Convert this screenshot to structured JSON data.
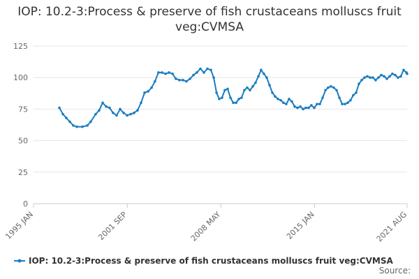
{
  "chart_data": {
    "type": "line",
    "title": "IOP: 10.2-3:Process & preserve of fish crustaceans molluscs fruit veg:CVMSA",
    "source": "Source:",
    "series": [
      {
        "name": "IOP: 10.2-3:Process & preserve of fish crustaceans molluscs fruit veg:CVMSA",
        "color": "#1a7dc0",
        "x": [
          1996.84,
          1997.09,
          1997.33,
          1997.58,
          1997.83,
          1998.08,
          1998.48,
          1998.83,
          1999.07,
          1999.42,
          1999.67,
          1999.92,
          2000.17,
          2000.41,
          2000.66,
          2000.91,
          2001.16,
          2001.41,
          2001.66,
          2001.91,
          2002.15,
          2002.4,
          2002.65,
          2002.9,
          2003.15,
          2003.4,
          2003.64,
          2003.89,
          2004.14,
          2004.39,
          2004.64,
          2004.89,
          2005.13,
          2005.38,
          2005.63,
          2005.88,
          2006.13,
          2006.38,
          2006.62,
          2006.87,
          2007.12,
          2007.37,
          2007.62,
          2007.82,
          2008.02,
          2008.21,
          2008.41,
          2008.61,
          2008.81,
          2009.01,
          2009.21,
          2009.41,
          2009.61,
          2009.8,
          2010.0,
          2010.2,
          2010.4,
          2010.6,
          2010.8,
          2011.0,
          2011.19,
          2011.39,
          2011.59,
          2011.79,
          2011.99,
          2012.19,
          2012.39,
          2012.59,
          2012.78,
          2012.98,
          2013.18,
          2013.38,
          2013.58,
          2013.78,
          2013.98,
          2014.18,
          2014.37,
          2014.57,
          2014.77,
          2014.97,
          2015.17,
          2015.37,
          2015.57,
          2015.77,
          2015.96,
          2016.16,
          2016.36,
          2016.56,
          2016.76,
          2016.96,
          2017.16,
          2017.35,
          2017.55,
          2017.75,
          2017.95,
          2018.15,
          2018.35,
          2018.55,
          2018.75,
          2018.94,
          2019.14,
          2019.34,
          2019.54,
          2019.74,
          2019.94,
          2020.14,
          2020.34,
          2020.53,
          2020.73,
          2020.93,
          2021.13,
          2021.33,
          2021.53,
          2021.58
        ],
        "values": [
          76,
          71,
          68,
          65,
          62,
          61,
          61,
          62,
          65,
          71,
          74,
          80,
          77,
          76,
          72,
          70,
          75,
          72,
          70,
          71,
          72,
          74,
          80,
          88,
          89,
          92,
          97,
          104,
          104,
          103,
          104,
          103,
          99,
          98,
          98,
          97,
          99,
          102,
          104,
          107,
          104,
          107,
          106,
          100,
          88,
          83,
          84,
          90,
          91,
          84,
          80,
          80,
          83,
          84,
          90,
          92,
          90,
          93,
          96,
          101,
          106,
          103,
          100,
          94,
          88,
          85,
          83,
          82,
          80,
          79,
          83,
          81,
          77,
          76,
          77,
          75,
          76,
          76,
          78,
          76,
          79,
          79,
          84,
          90,
          92,
          93,
          92,
          90,
          84,
          79,
          79,
          80,
          82,
          86,
          88,
          95,
          98,
          100,
          101,
          100,
          100,
          98,
          100,
          102,
          101,
          99,
          101,
          103,
          102,
          100,
          101,
          106,
          104,
          103
        ]
      }
    ],
    "xlim": [
      1995,
      2021.58
    ],
    "xticks": [
      {
        "value": 1995,
        "label": "1995 JAN"
      },
      {
        "value": 2001.67,
        "label": "2001 SEP"
      },
      {
        "value": 2008.33,
        "label": "2008 MAY"
      },
      {
        "value": 2015,
        "label": "2015 JAN"
      },
      {
        "value": 2021.58,
        "label": "2021 AUG"
      }
    ],
    "ylim": [
      0,
      125
    ],
    "yticks": [
      0,
      25,
      50,
      75,
      100,
      125
    ],
    "grid": true
  }
}
